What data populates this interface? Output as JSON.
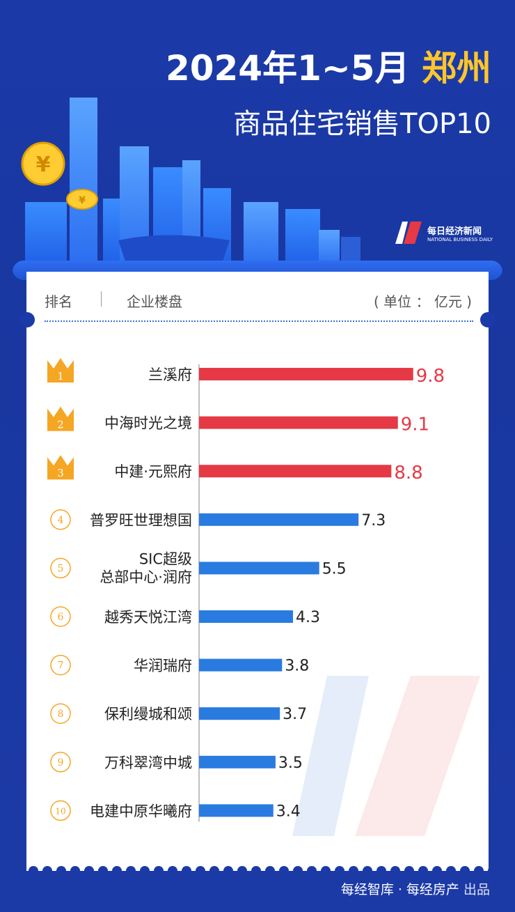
{
  "header": {
    "title_prefix": "2024年1~5月",
    "title_city": "郑州",
    "subtitle": "商品住宅销售TOP10"
  },
  "logo": {
    "name_cn": "每日经济新闻",
    "name_en": "NATIONAL BUSINESS DAILY"
  },
  "table_header": {
    "rank": "排名",
    "name": "企业楼盘",
    "unit": "( 单位 ： 亿元 )"
  },
  "footer": {
    "source": "每经智库 · 每经房产",
    "suffix": "出品"
  },
  "colors": {
    "top3": "#e63946",
    "rest": "#2a7be0",
    "crown": "#f5a623",
    "title_highlight": "#ffc62b"
  },
  "chart_data": {
    "type": "bar",
    "orientation": "horizontal",
    "title": "2024年1~5月郑州商品住宅销售TOP10",
    "unit": "亿元",
    "ranks": [
      "1",
      "2",
      "3",
      "4",
      "5",
      "6",
      "7",
      "8",
      "9",
      "10"
    ],
    "categories": [
      [
        "兰溪府"
      ],
      [
        "中海时光之境"
      ],
      [
        "中建·元熙府"
      ],
      [
        "普罗旺世理想国"
      ],
      [
        "SIC超级",
        "总部中心·润府"
      ],
      [
        "越秀天悦江湾"
      ],
      [
        "华润瑞府"
      ],
      [
        "保利缦城和颂"
      ],
      [
        "万科翠湾中城"
      ],
      [
        "电建中原华曦府"
      ]
    ],
    "values": [
      9.8,
      9.1,
      8.8,
      7.3,
      5.5,
      4.3,
      3.8,
      3.7,
      3.5,
      3.4
    ],
    "xlim": [
      0,
      10
    ]
  }
}
